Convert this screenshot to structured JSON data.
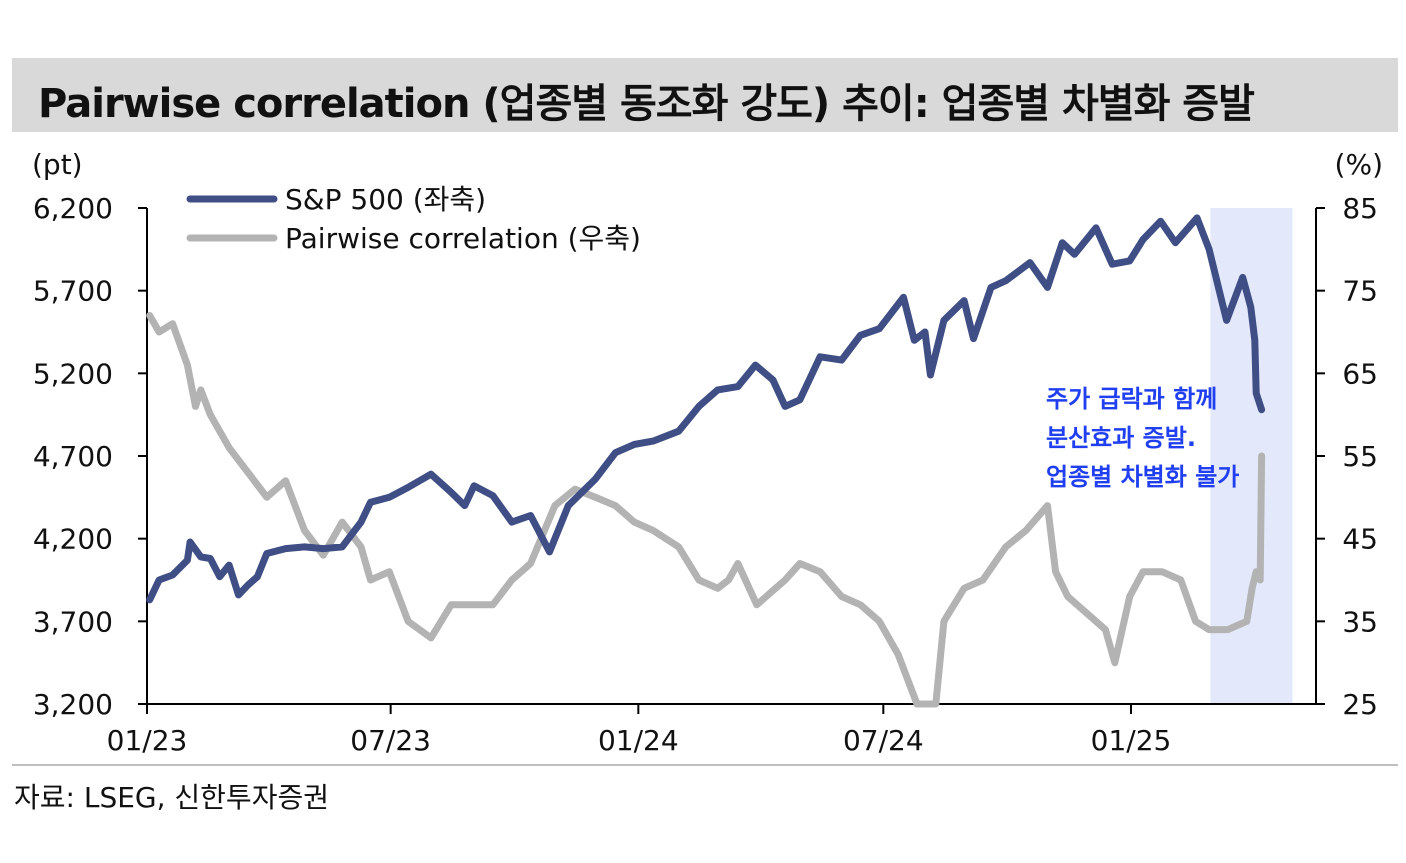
{
  "title": "Pairwise correlation (업종별 동조화 강도) 추이: 업종별 차별화 증발",
  "source": "자료: LSEG, 신한투자증권",
  "chart_data": {
    "type": "line",
    "left_unit": "(pt)",
    "right_unit": "(%)",
    "x_tick_labels": [
      "01/23",
      "07/23",
      "01/24",
      "07/24",
      "01/25"
    ],
    "y_left": {
      "range": [
        3200,
        6200
      ],
      "ticks": [
        "6,200",
        "5,700",
        "5,200",
        "4,700",
        "4,200",
        "3,700",
        "3,200"
      ]
    },
    "y_right": {
      "range": [
        25,
        85
      ],
      "ticks": [
        "85",
        "75",
        "65",
        "55",
        "45",
        "35",
        "25"
      ]
    },
    "highlight_range": [
      "2025-03",
      "2025-04-end"
    ],
    "annotation": [
      "주가 급락과 함께",
      "분산효과 증발.",
      "업종별 차별화 불가"
    ],
    "colors": {
      "sp500": "#3f4f86",
      "pairwise": "#b3b3b3",
      "highlight": "#e3e9fb",
      "annotation": "#1f3ff0"
    },
    "series": [
      {
        "name": "S&P 500 (좌축)",
        "axis": "left",
        "x": [
          "2023-01-03",
          "2023-01-10",
          "2023-01-20",
          "2023-01-31",
          "2023-02-02",
          "2023-02-10",
          "2023-02-17",
          "2023-02-24",
          "2023-03-03",
          "2023-03-10",
          "2023-03-17",
          "2023-03-24",
          "2023-03-31",
          "2023-04-14",
          "2023-04-28",
          "2023-05-12",
          "2023-05-26",
          "2023-06-09",
          "2023-06-16",
          "2023-06-30",
          "2023-07-14",
          "2023-07-31",
          "2023-08-15",
          "2023-08-25",
          "2023-09-01",
          "2023-09-15",
          "2023-09-29",
          "2023-10-13",
          "2023-10-27",
          "2023-11-10",
          "2023-11-30",
          "2023-12-15",
          "2023-12-29",
          "2024-01-12",
          "2024-01-31",
          "2024-02-15",
          "2024-02-29",
          "2024-03-15",
          "2024-03-28",
          "2024-04-10",
          "2024-04-19",
          "2024-04-30",
          "2024-05-15",
          "2024-05-31",
          "2024-06-14",
          "2024-06-28",
          "2024-07-16",
          "2024-07-24",
          "2024-08-01",
          "2024-08-05",
          "2024-08-15",
          "2024-08-30",
          "2024-09-06",
          "2024-09-19",
          "2024-09-30",
          "2024-10-18",
          "2024-10-31",
          "2024-11-11",
          "2024-11-20",
          "2024-12-06",
          "2024-12-18",
          "2024-12-31",
          "2025-01-10",
          "2025-01-23",
          "2025-02-03",
          "2025-02-19",
          "2025-02-28",
          "2025-03-10",
          "2025-03-13",
          "2025-03-25",
          "2025-03-31",
          "2025-04-03",
          "2025-04-04",
          "2025-04-08"
        ],
        "values": [
          3830,
          3950,
          3980,
          4070,
          4180,
          4090,
          4080,
          3970,
          4040,
          3860,
          3920,
          3970,
          4110,
          4140,
          4150,
          4140,
          4150,
          4300,
          4420,
          4450,
          4510,
          4590,
          4480,
          4400,
          4520,
          4460,
          4300,
          4340,
          4120,
          4400,
          4560,
          4720,
          4770,
          4790,
          4850,
          5000,
          5100,
          5120,
          5250,
          5160,
          5000,
          5040,
          5300,
          5280,
          5430,
          5470,
          5660,
          5400,
          5450,
          5190,
          5520,
          5640,
          5410,
          5720,
          5760,
          5870,
          5720,
          5990,
          5920,
          6080,
          5860,
          5880,
          6010,
          6120,
          5990,
          6140,
          5950,
          5620,
          5520,
          5780,
          5600,
          5400,
          5080,
          4980
        ]
      },
      {
        "name": "Pairwise correlation (우축)",
        "axis": "right",
        "x": [
          "2023-01-03",
          "2023-01-10",
          "2023-01-20",
          "2023-01-31",
          "2023-02-06",
          "2023-02-10",
          "2023-02-17",
          "2023-03-03",
          "2023-03-17",
          "2023-03-31",
          "2023-04-14",
          "2023-04-28",
          "2023-05-12",
          "2023-05-26",
          "2023-06-09",
          "2023-06-16",
          "2023-06-30",
          "2023-07-14",
          "2023-07-31",
          "2023-08-15",
          "2023-08-31",
          "2023-09-15",
          "2023-09-29",
          "2023-10-13",
          "2023-10-31",
          "2023-11-15",
          "2023-11-30",
          "2023-12-15",
          "2023-12-29",
          "2024-01-12",
          "2024-01-31",
          "2024-02-15",
          "2024-02-29",
          "2024-03-08",
          "2024-03-15",
          "2024-03-29",
          "2024-04-12",
          "2024-04-19",
          "2024-04-30",
          "2024-05-15",
          "2024-05-31",
          "2024-06-14",
          "2024-06-28",
          "2024-07-12",
          "2024-07-26",
          "2024-08-02",
          "2024-08-09",
          "2024-08-15",
          "2024-08-30",
          "2024-09-13",
          "2024-09-30",
          "2024-10-15",
          "2024-10-31",
          "2024-11-06",
          "2024-11-15",
          "2024-11-29",
          "2024-12-13",
          "2024-12-20",
          "2024-12-31",
          "2025-01-10",
          "2025-01-24",
          "2025-02-07",
          "2025-02-18",
          "2025-02-28",
          "2025-03-14",
          "2025-03-28",
          "2025-04-01",
          "2025-04-04",
          "2025-04-07",
          "2025-04-08"
        ],
        "values": [
          72,
          70,
          71,
          66,
          61,
          63,
          60,
          56,
          53,
          50,
          52,
          46,
          43,
          47,
          44,
          40,
          41,
          35,
          33,
          37,
          37,
          37,
          40,
          42,
          49,
          51,
          50,
          49,
          47,
          46,
          44,
          40,
          39,
          40,
          42,
          37,
          39,
          40,
          42,
          41,
          38,
          37,
          35,
          31,
          25,
          25,
          25,
          35,
          39,
          40,
          44,
          46,
          49,
          41,
          38,
          36,
          34,
          30,
          38,
          41,
          41,
          40,
          35,
          34,
          34,
          35,
          39,
          41,
          40,
          55
        ]
      }
    ]
  }
}
